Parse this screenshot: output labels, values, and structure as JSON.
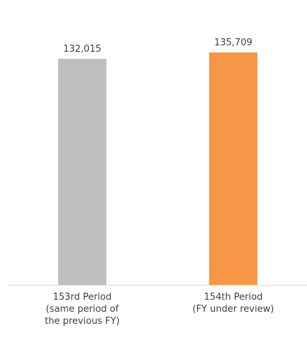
{
  "chart_data": {
    "type": "bar",
    "categories": [
      "153rd Period\n(same period of\nthe previous FY)",
      "154th Period\n(FY under review)"
    ],
    "values": [
      132015,
      135709
    ],
    "value_labels": [
      "132,015",
      "135,709"
    ],
    "colors": [
      "#bfbfbf",
      "#f79646"
    ]
  }
}
